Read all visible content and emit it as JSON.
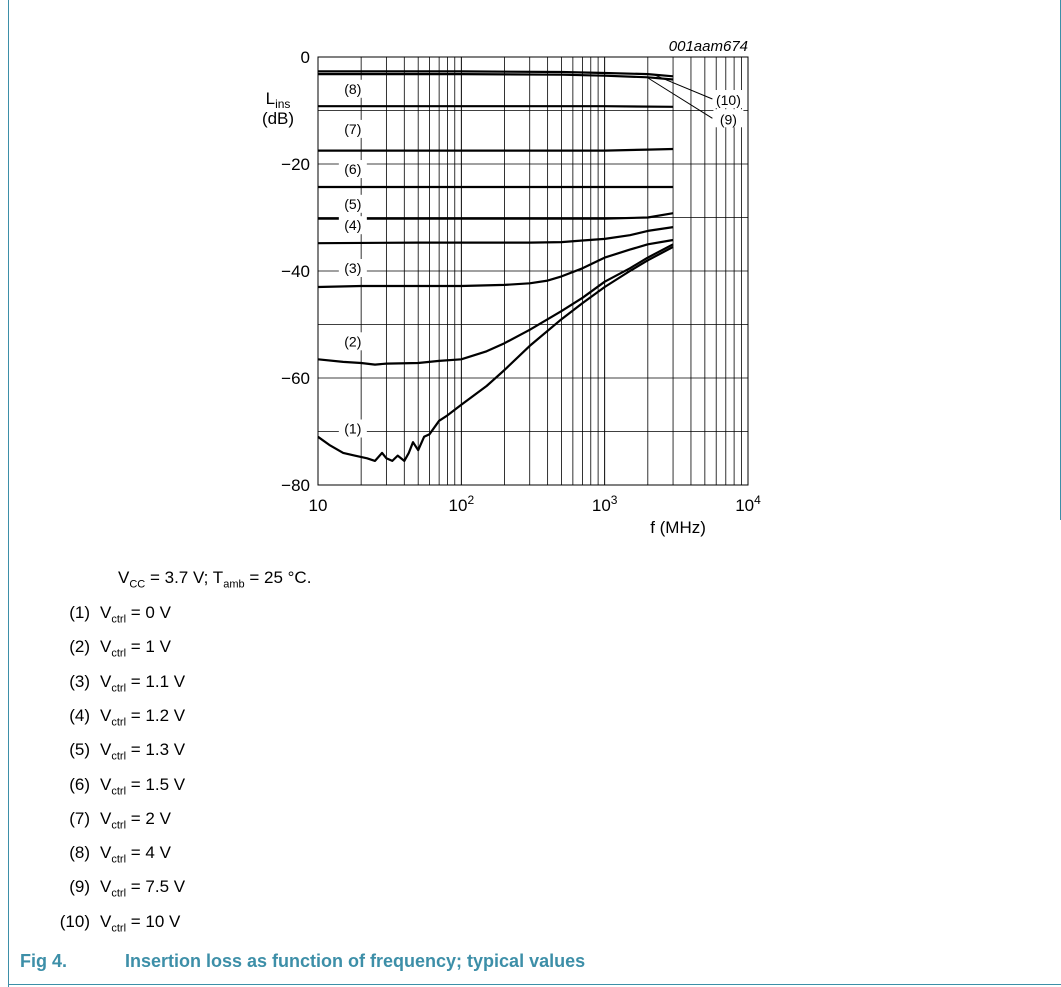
{
  "figure": {
    "ref": "001aam674",
    "caption_label": "Fig 4.",
    "caption_title": "Insertion loss as function of frequency; typical values"
  },
  "conditions": {
    "vcc_prefix": "V",
    "vcc_sub": "CC",
    "vcc_rest": " = 3.7 V; T",
    "tamb_sub": "amb",
    "tamb_rest": " = 25 °C."
  },
  "legend": [
    {
      "num": "(1)",
      "v": "V",
      "sub": "ctrl",
      "text": " = 0 V"
    },
    {
      "num": "(2)",
      "v": "V",
      "sub": "ctrl",
      "text": " = 1 V"
    },
    {
      "num": "(3)",
      "v": "V",
      "sub": "ctrl",
      "text": " = 1.1 V"
    },
    {
      "num": "(4)",
      "v": "V",
      "sub": "ctrl",
      "text": " = 1.2 V"
    },
    {
      "num": "(5)",
      "v": "V",
      "sub": "ctrl",
      "text": " = 1.3 V"
    },
    {
      "num": "(6)",
      "v": "V",
      "sub": "ctrl",
      "text": " = 1.5 V"
    },
    {
      "num": "(7)",
      "v": "V",
      "sub": "ctrl",
      "text": " = 2 V"
    },
    {
      "num": "(8)",
      "v": "V",
      "sub": "ctrl",
      "text": " = 4 V"
    },
    {
      "num": "(9)",
      "v": "V",
      "sub": "ctrl",
      "text": " = 7.5 V"
    },
    {
      "num": "(10)",
      "v": "V",
      "sub": "ctrl",
      "text": " = 10 V"
    }
  ],
  "chart_data": {
    "type": "line",
    "xlabel": "f (MHz)",
    "ylabel": "L",
    "ylabel_sub": "ins",
    "ylabel_unit": "(dB)",
    "x_scale": "log",
    "xlim": [
      10,
      10000
    ],
    "ylim": [
      -80,
      0
    ],
    "grid": true,
    "x_ticks": [
      {
        "value": 10,
        "base": "10",
        "exp": ""
      },
      {
        "value": 100,
        "base": "10",
        "exp": "2"
      },
      {
        "value": 1000,
        "base": "10",
        "exp": "3"
      },
      {
        "value": 10000,
        "base": "10",
        "exp": "4"
      }
    ],
    "y_ticks": [
      {
        "value": 0,
        "label": "0"
      },
      {
        "value": -20,
        "label": "−20"
      },
      {
        "value": -40,
        "label": "−40"
      },
      {
        "value": -60,
        "label": "−60"
      },
      {
        "value": -80,
        "label": "−80"
      }
    ],
    "series": [
      {
        "name": "(1)",
        "x": [
          10,
          12,
          15,
          18,
          22,
          25,
          28,
          30,
          33,
          36,
          40,
          43,
          46,
          50,
          55,
          60,
          70,
          80,
          100,
          150,
          200,
          300,
          500,
          700,
          1000,
          1500,
          2000,
          3000
        ],
        "y": [
          -71,
          -72.5,
          -74,
          -74.5,
          -75,
          -75.5,
          -74,
          -75,
          -75.5,
          -74.5,
          -75.5,
          -74,
          -72,
          -73.5,
          -71,
          -70.5,
          -68,
          -67,
          -65,
          -61.5,
          -58.5,
          -54,
          -49,
          -46,
          -43,
          -40,
          -38,
          -35.5
        ]
      },
      {
        "name": "(2)",
        "x": [
          10,
          15,
          20,
          25,
          30,
          50,
          70,
          100,
          150,
          200,
          300,
          500,
          700,
          1000,
          1500,
          2000,
          3000
        ],
        "y": [
          -56.5,
          -57,
          -57.2,
          -57.5,
          -57.3,
          -57.2,
          -56.8,
          -56.5,
          -55,
          -53.5,
          -51,
          -47.5,
          -45,
          -42,
          -39.5,
          -37.5,
          -35
        ]
      },
      {
        "name": "(3)",
        "x": [
          10,
          20,
          50,
          100,
          200,
          300,
          400,
          500,
          700,
          1000,
          1500,
          2000,
          3000
        ],
        "y": [
          -43,
          -42.8,
          -42.8,
          -42.8,
          -42.6,
          -42.3,
          -41.8,
          -41,
          -39.5,
          -37.5,
          -36,
          -35,
          -34.2
        ]
      },
      {
        "name": "(4)",
        "x": [
          10,
          50,
          100,
          300,
          500,
          700,
          1000,
          1500,
          2000,
          3000
        ],
        "y": [
          -34.8,
          -34.7,
          -34.7,
          -34.7,
          -34.6,
          -34.3,
          -34,
          -33.3,
          -32.5,
          -31.8
        ]
      },
      {
        "name": "(5)",
        "x": [
          10,
          100,
          500,
          1000,
          2000,
          3000
        ],
        "y": [
          -30.2,
          -30.2,
          -30.2,
          -30.2,
          -30,
          -29.2
        ]
      },
      {
        "name": "(6)",
        "x": [
          10,
          100,
          1000,
          3000
        ],
        "y": [
          -24.3,
          -24.3,
          -24.3,
          -24.3
        ]
      },
      {
        "name": "(7)",
        "x": [
          10,
          100,
          1000,
          2000,
          3000
        ],
        "y": [
          -17.5,
          -17.5,
          -17.5,
          -17.3,
          -17.2
        ]
      },
      {
        "name": "(8)",
        "x": [
          10,
          100,
          1000,
          3000
        ],
        "y": [
          -9.2,
          -9.2,
          -9.2,
          -9.3
        ]
      },
      {
        "name": "(9)",
        "x": [
          10,
          100,
          500,
          1000,
          2000,
          3000
        ],
        "y": [
          -3.2,
          -3.2,
          -3.3,
          -3.5,
          -3.8,
          -4.2
        ]
      },
      {
        "name": "(10)",
        "x": [
          10,
          100,
          500,
          1000,
          2000,
          3000
        ],
        "y": [
          -2.7,
          -2.7,
          -2.8,
          -3.0,
          -3.2,
          -3.6
        ]
      }
    ],
    "inline_labels": [
      {
        "text": "(8)",
        "x": 17.5,
        "y": -6.5
      },
      {
        "text": "(7)",
        "x": 17.5,
        "y": -14
      },
      {
        "text": "(6)",
        "x": 17.5,
        "y": -21.5
      },
      {
        "text": "(5)",
        "x": 17.5,
        "y": -28
      },
      {
        "text": "(4)",
        "x": 17.5,
        "y": -32
      },
      {
        "text": "(3)",
        "x": 17.5,
        "y": -40
      },
      {
        "text": "(2)",
        "x": 17.5,
        "y": -53.7
      },
      {
        "text": "(1)",
        "x": 17.5,
        "y": -70
      }
    ],
    "callouts": [
      {
        "text": "(10)",
        "tx": 7300,
        "ty": -8.6,
        "from_x": 2200,
        "from_y": -3.3
      },
      {
        "text": "(9)",
        "tx": 7300,
        "ty": -12.2,
        "from_x": 2000,
        "from_y": -3.9
      }
    ]
  }
}
